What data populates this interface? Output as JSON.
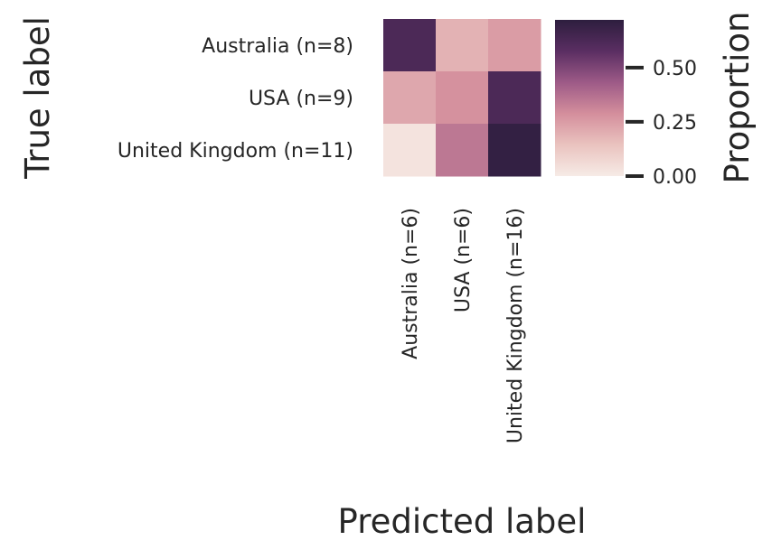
{
  "chart_data": {
    "type": "heatmap",
    "xlabel": "Predicted label",
    "ylabel": "True label",
    "x_categories": [
      "Australia (n=6)",
      "USA (n=6)",
      "United Kingdom (n=16)"
    ],
    "y_categories": [
      "Australia (n=8)",
      "USA (n=9)",
      "United Kingdom (n=11)"
    ],
    "values": [
      [
        0.62,
        0.19,
        0.25
      ],
      [
        0.22,
        0.28,
        0.62
      ],
      [
        0.03,
        0.35,
        0.7
      ]
    ],
    "colorbar": {
      "label": "Proportion",
      "range": [
        0.0,
        0.72
      ],
      "ticks": [
        0.0,
        0.25,
        0.5
      ],
      "tick_labels": [
        "0.00",
        "0.25",
        "0.50"
      ]
    },
    "colormap_stops": [
      "#f6ebe6",
      "#eac3bf",
      "#d48e9c",
      "#9d5a87",
      "#5a2e62",
      "#2d1e3e"
    ],
    "grid": false
  }
}
